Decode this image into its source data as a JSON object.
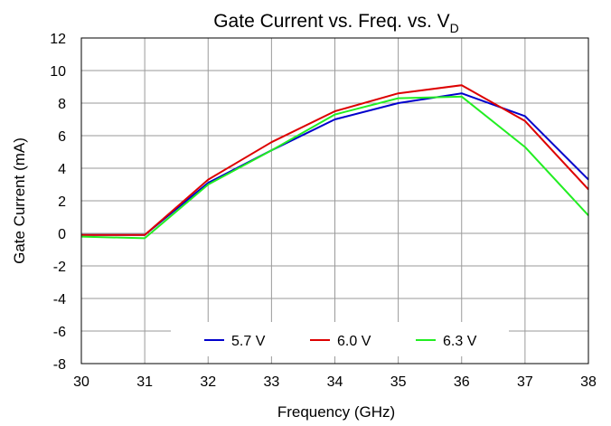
{
  "chart_data": {
    "type": "line",
    "title": "Gate Current vs. Freq. vs. V",
    "title_subscript": "D",
    "xlabel": "Frequency (GHz)",
    "ylabel": "Gate Current (mA)",
    "xlim": [
      30,
      38
    ],
    "ylim": [
      -8,
      12
    ],
    "x_ticks": [
      30,
      31,
      32,
      33,
      34,
      35,
      36,
      37,
      38
    ],
    "y_ticks": [
      -8,
      -6,
      -4,
      -2,
      0,
      2,
      4,
      6,
      8,
      10,
      12
    ],
    "grid": true,
    "legend_position": "bottom-center",
    "x": [
      30,
      31,
      32,
      33,
      34,
      35,
      36,
      37,
      38
    ],
    "series": [
      {
        "name": "5.7 V",
        "color": "#0000cc",
        "values": [
          -0.1,
          -0.1,
          3.1,
          5.1,
          7.0,
          8.0,
          8.6,
          7.2,
          3.3
        ]
      },
      {
        "name": "6.0 V",
        "color": "#dd0000",
        "values": [
          -0.1,
          -0.1,
          3.3,
          5.6,
          7.5,
          8.6,
          9.1,
          6.9,
          2.7
        ]
      },
      {
        "name": "6.3 V",
        "color": "#22ee22",
        "values": [
          -0.2,
          -0.3,
          3.0,
          5.1,
          7.3,
          8.3,
          8.4,
          5.3,
          1.1
        ]
      }
    ]
  }
}
